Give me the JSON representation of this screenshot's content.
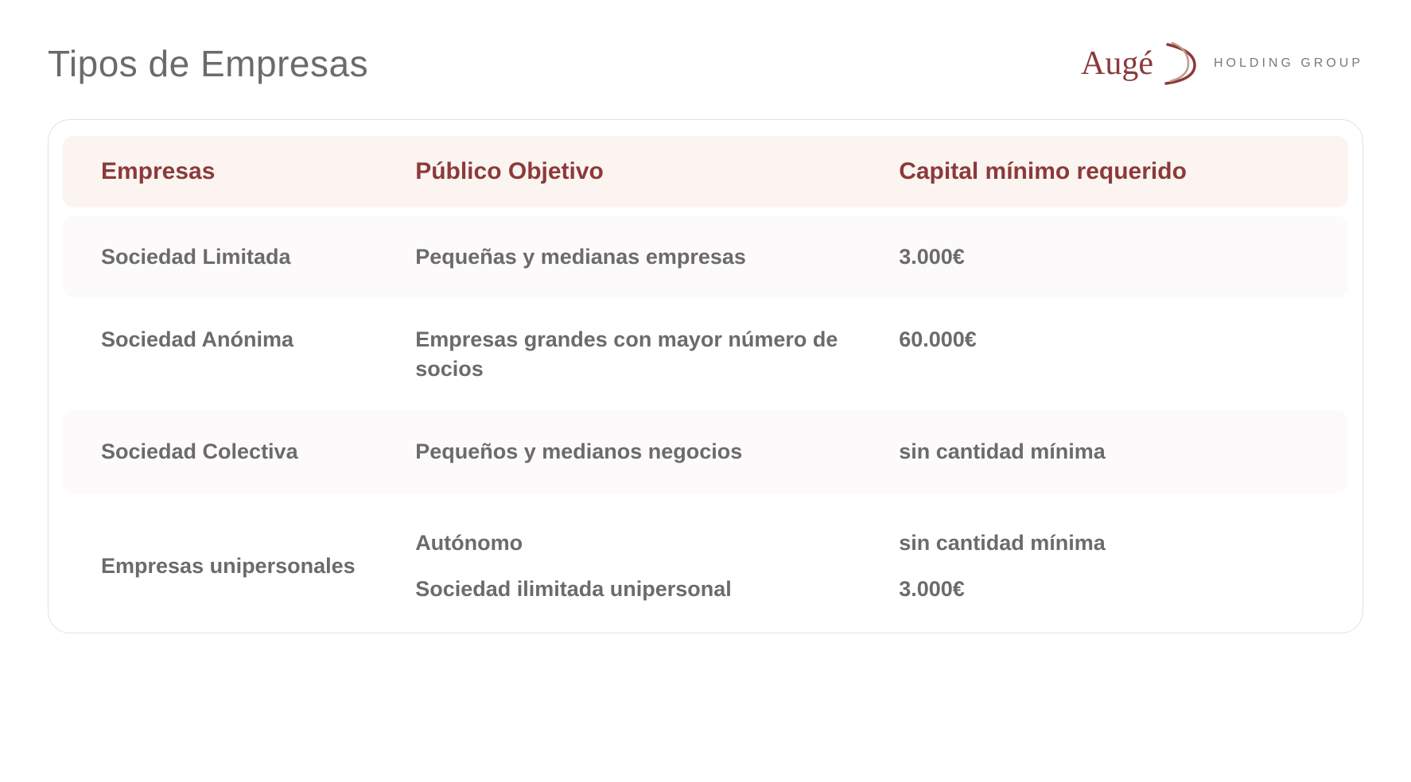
{
  "page": {
    "title": "Tipos de Empresas"
  },
  "brand": {
    "name": "Augé",
    "tagline": "HOLDING GROUP",
    "swoosh_color_a": "#8b3a3a",
    "swoosh_color_b": "#c49a8a"
  },
  "table": {
    "columns": [
      "Empresas",
      "Público Objetivo",
      "Capital mínimo requerido"
    ],
    "rows": [
      {
        "empresa": "Sociedad Limitada",
        "publico": "Pequeñas y medianas empresas",
        "capital": "3.000€",
        "alt": true
      },
      {
        "empresa": "Sociedad Anónima",
        "publico": "Empresas grandes con mayor número de socios",
        "capital": "60.000€",
        "alt": false
      },
      {
        "empresa": "Sociedad Colectiva",
        "publico": "Pequeños y medianos negocios",
        "capital": "sin cantidad mínima",
        "alt": true
      },
      {
        "empresa": "Empresas unipersonales",
        "publico_multi": [
          "Autónomo",
          "Sociedad ilimitada unipersonal"
        ],
        "capital_multi": [
          "sin cantidad mínima",
          "3.000€"
        ],
        "alt": false,
        "last": true
      }
    ]
  },
  "style": {
    "header_text_color": "#8b3a3a",
    "body_text_color": "#6b6b6b",
    "title_color": "#6b6b6b",
    "header_bg": "#fbf4f1",
    "alt_row_bg": "#fdfafb",
    "border_color": "#e8e0e0",
    "background": "#ffffff"
  }
}
